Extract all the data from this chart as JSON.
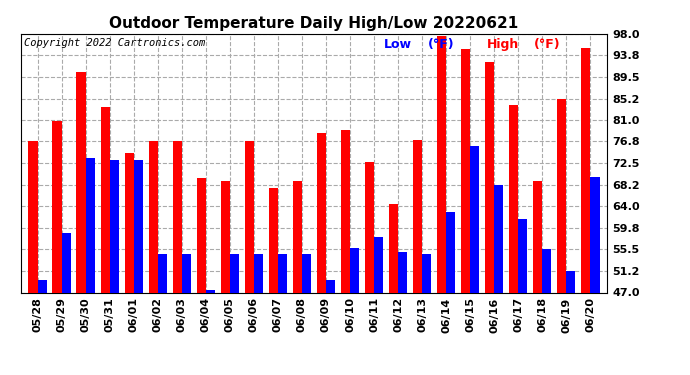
{
  "title": "Outdoor Temperature Daily High/Low 20220621",
  "copyright": "Copyright 2022 Cartronics.com",
  "legend_low": "Low",
  "legend_high": "High",
  "legend_unit": "(°F)",
  "ylabel_ticks": [
    47.0,
    51.2,
    55.5,
    59.8,
    64.0,
    68.2,
    72.5,
    76.8,
    81.0,
    85.2,
    89.5,
    93.8,
    98.0
  ],
  "ylim": [
    47.0,
    98.0
  ],
  "dates": [
    "05/28",
    "05/29",
    "05/30",
    "05/31",
    "06/01",
    "06/02",
    "06/03",
    "06/04",
    "06/05",
    "06/06",
    "06/07",
    "06/08",
    "06/09",
    "06/10",
    "06/11",
    "06/12",
    "06/13",
    "06/14",
    "06/15",
    "06/16",
    "06/17",
    "06/18",
    "06/19",
    "06/20"
  ],
  "highs": [
    76.8,
    80.9,
    90.5,
    83.5,
    74.5,
    76.8,
    76.8,
    69.5,
    69.0,
    76.8,
    67.5,
    69.0,
    78.5,
    79.0,
    72.8,
    64.5,
    77.0,
    97.5,
    95.0,
    92.5,
    84.0,
    68.9,
    85.2,
    95.2
  ],
  "lows": [
    49.5,
    58.8,
    73.5,
    73.2,
    73.2,
    54.5,
    54.5,
    47.5,
    54.5,
    54.5,
    54.5,
    54.5,
    49.5,
    55.8,
    58.0,
    55.0,
    54.5,
    62.8,
    75.8,
    68.2,
    61.5,
    55.5,
    51.2,
    69.8
  ],
  "bar_color_high": "#ff0000",
  "bar_color_low": "#0000ff",
  "background_color": "#ffffff",
  "grid_color": "#aaaaaa",
  "title_fontsize": 11,
  "copyright_fontsize": 7.5,
  "legend_fontsize": 9,
  "tick_fontsize": 8,
  "bar_width": 0.38
}
